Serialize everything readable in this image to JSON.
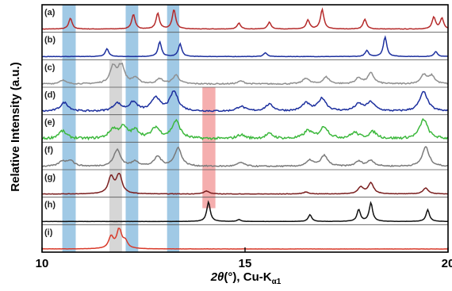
{
  "chart_data": {
    "type": "line",
    "title": "",
    "xlabel_prefix": "2",
    "xlabel_theta": "θ",
    "xlabel_rest": "(°), Cu-K",
    "xlabel_sub": "α1",
    "ylabel": "Relative Intensity (a.u.)",
    "xlim": [
      10,
      20
    ],
    "x_ticks": [
      "10",
      "15",
      "20"
    ],
    "x_tick_values": [
      10,
      15,
      20
    ],
    "highlight_bands": [
      {
        "x0": 10.5,
        "x1": 10.83,
        "color": "#8fbfe0"
      },
      {
        "x0": 11.66,
        "x1": 11.97,
        "color": "#cfcfcf"
      },
      {
        "x0": 12.06,
        "x1": 12.37,
        "color": "#8fbfe0"
      },
      {
        "x0": 13.08,
        "x1": 13.38,
        "color": "#8fbfe0"
      },
      {
        "x0": 13.95,
        "x1": 14.27,
        "color": "#f3a0a0"
      }
    ],
    "series": [
      {
        "name": "(a)",
        "color": "#b52a2a",
        "noise": 0.01,
        "width": 0.05,
        "peaks": [
          [
            10.7,
            0.55
          ],
          [
            12.25,
            0.75
          ],
          [
            12.85,
            0.8
          ],
          [
            13.25,
            1.0
          ],
          [
            14.85,
            0.3
          ],
          [
            15.6,
            0.35
          ],
          [
            16.55,
            0.45
          ],
          [
            16.9,
            1.0
          ],
          [
            17.95,
            0.5
          ],
          [
            19.65,
            0.6
          ],
          [
            19.85,
            0.55
          ]
        ]
      },
      {
        "name": "(b)",
        "color": "#1c2f9e",
        "noise": 0.01,
        "width": 0.05,
        "peaks": [
          [
            11.6,
            0.4
          ],
          [
            12.9,
            0.75
          ],
          [
            13.4,
            0.65
          ],
          [
            15.5,
            0.2
          ],
          [
            18.0,
            0.3
          ],
          [
            18.45,
            1.0
          ],
          [
            19.7,
            0.25
          ]
        ]
      },
      {
        "name": "(c)",
        "color": "#8f8f8f",
        "noise": 0.03,
        "width": 0.09,
        "peaks": [
          [
            10.5,
            0.2
          ],
          [
            11.75,
            0.85
          ],
          [
            11.95,
            1.0
          ],
          [
            12.3,
            0.3
          ],
          [
            12.9,
            0.25
          ],
          [
            13.3,
            0.45
          ],
          [
            14.9,
            0.15
          ],
          [
            16.5,
            0.3
          ],
          [
            17.0,
            0.35
          ],
          [
            17.8,
            0.3
          ],
          [
            18.1,
            0.55
          ],
          [
            19.4,
            0.45
          ],
          [
            19.6,
            0.4
          ]
        ]
      },
      {
        "name": "(d)",
        "color": "#1c2f9e",
        "noise": 0.04,
        "width": 0.12,
        "peaks": [
          [
            10.55,
            0.45
          ],
          [
            11.85,
            0.4
          ],
          [
            12.25,
            0.45
          ],
          [
            12.8,
            0.7
          ],
          [
            13.25,
            1.0
          ],
          [
            14.9,
            0.25
          ],
          [
            15.6,
            0.35
          ],
          [
            16.5,
            0.4
          ],
          [
            16.9,
            0.65
          ],
          [
            17.8,
            0.35
          ],
          [
            18.1,
            0.45
          ],
          [
            19.4,
            1.0
          ]
        ]
      },
      {
        "name": "(e)",
        "color": "#3cb83c",
        "noise": 0.06,
        "width": 0.12,
        "peaks": [
          [
            10.5,
            0.4
          ],
          [
            11.75,
            0.45
          ],
          [
            12.0,
            0.55
          ],
          [
            12.3,
            0.4
          ],
          [
            12.8,
            0.55
          ],
          [
            13.3,
            0.9
          ],
          [
            14.9,
            0.2
          ],
          [
            15.6,
            0.25
          ],
          [
            16.55,
            0.4
          ],
          [
            16.95,
            0.6
          ],
          [
            17.7,
            0.3
          ],
          [
            18.15,
            0.35
          ],
          [
            19.4,
            1.0
          ]
        ]
      },
      {
        "name": "(f)",
        "color": "#7a7a7a",
        "noise": 0.03,
        "width": 0.1,
        "peaks": [
          [
            10.5,
            0.25
          ],
          [
            10.7,
            0.3
          ],
          [
            11.85,
            0.85
          ],
          [
            12.3,
            0.25
          ],
          [
            12.85,
            0.5
          ],
          [
            13.35,
            0.95
          ],
          [
            14.9,
            0.2
          ],
          [
            16.6,
            0.3
          ],
          [
            16.95,
            0.55
          ],
          [
            17.8,
            0.25
          ],
          [
            18.1,
            0.3
          ],
          [
            19.45,
            1.0
          ]
        ]
      },
      {
        "name": "(g)",
        "color": "#7a1f1f",
        "noise": 0.01,
        "width": 0.08,
        "peaks": [
          [
            11.7,
            0.85
          ],
          [
            11.9,
            1.0
          ],
          [
            14.05,
            0.15
          ],
          [
            16.5,
            0.1
          ],
          [
            17.85,
            0.35
          ],
          [
            18.1,
            0.55
          ],
          [
            19.45,
            0.3
          ]
        ]
      },
      {
        "name": "(h)",
        "color": "#111111",
        "noise": 0.005,
        "width": 0.05,
        "peaks": [
          [
            14.1,
            1.0
          ],
          [
            14.85,
            0.1
          ],
          [
            16.6,
            0.35
          ],
          [
            17.8,
            0.6
          ],
          [
            18.1,
            0.95
          ],
          [
            19.5,
            0.6
          ]
        ]
      },
      {
        "name": "(i)",
        "color": "#d93a2a",
        "noise": 0.005,
        "width": 0.07,
        "peaks": [
          [
            11.7,
            0.6
          ],
          [
            11.9,
            1.0
          ],
          [
            12.05,
            0.35
          ]
        ]
      }
    ]
  }
}
